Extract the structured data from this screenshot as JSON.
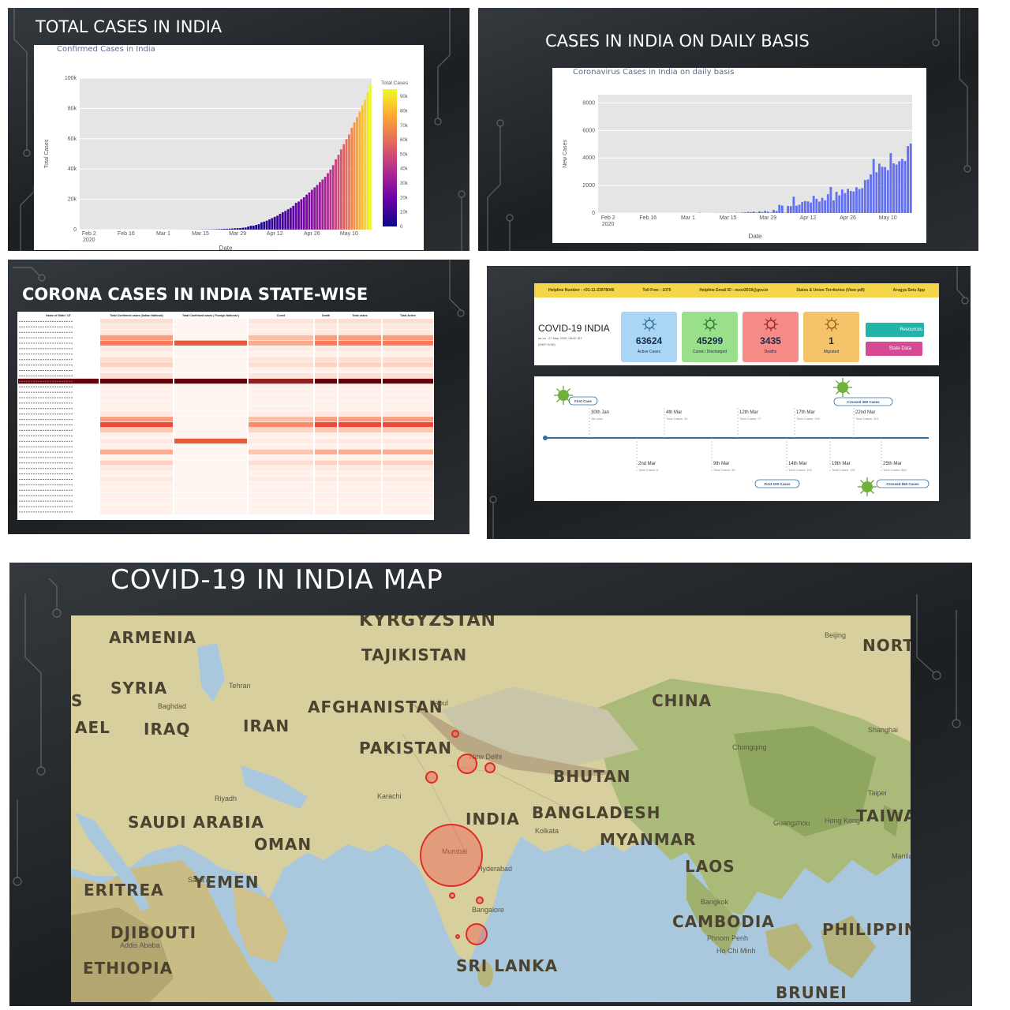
{
  "slides": {
    "total": {
      "title": "TOTAL CASES IN INDIA",
      "chart_title": "Confirmed Cases in India",
      "ylabel": "Total Cases",
      "xlabel": "Date",
      "colorbar_title": "Total Cases",
      "yticks": [
        "0",
        "20k",
        "40k",
        "60k",
        "80k",
        "100k"
      ],
      "xticks": [
        "Feb 2\n2020",
        "Feb 16",
        "Mar 1",
        "Mar 15",
        "Mar 29",
        "Apr 12",
        "Apr 26",
        "May 10"
      ],
      "cbticks": [
        "0",
        "10k",
        "20k",
        "30k",
        "40k",
        "50k",
        "60k",
        "70k",
        "80k",
        "90k"
      ]
    },
    "daily": {
      "title": "CASES IN INDIA ON DAILY BASIS",
      "chart_title": "Coronavirus Cases in India on daily basis",
      "ylabel": "New Cases",
      "xlabel": "Date",
      "yticks": [
        "0",
        "2000",
        "4000",
        "6000",
        "8000"
      ],
      "xticks": [
        "Feb 2\n2020",
        "Feb 16",
        "Mar 1",
        "Mar 15",
        "Mar 29",
        "Apr 12",
        "Apr 26",
        "May 10"
      ]
    },
    "statewise": {
      "title": "CORONA CASES IN INDIA STATE-WISE",
      "headers": [
        "Name of State / UT",
        "Total Confirmed cases (Indian National)",
        "Total Confirmed cases ( Foreign National )",
        "Cured",
        "Death",
        "Total cases",
        "Total Active"
      ]
    },
    "dashboard": {
      "topbar": [
        "Helpline Number : +91-11-23978046",
        "Toll Free : 1075",
        "Helpline Email ID : ncov2019@gov.in",
        "States & Union Territories (View pdf)",
        "Arogya Setu App"
      ],
      "title": "COVID-19 INDIA",
      "subtitle": "as on : 27 May 2020, 08:00 IST (GMT+5:30)",
      "cards": [
        {
          "value": "63624",
          "label": "Active Cases",
          "color": "#a9d6f5"
        },
        {
          "value": "45299",
          "label": "Cured / Discharged",
          "color": "#9ae08a"
        },
        {
          "value": "3435",
          "label": "Deaths",
          "color": "#f58a86"
        },
        {
          "value": "1",
          "label": "Migrated",
          "color": "#f5c46a"
        }
      ],
      "buttons": [
        "Resources",
        "State Data"
      ],
      "timeline_top": [
        {
          "date": "30th Jan",
          "note": "1st case"
        },
        {
          "date": "4th Mar",
          "note": "Total Cases: 32"
        },
        {
          "date": "12th Mar",
          "note": "Total Cases: 77"
        },
        {
          "date": "17th Mar",
          "note": "Total Cases: 130"
        },
        {
          "date": "22nd Mar",
          "note": "Total Cases: 321"
        }
      ],
      "timeline_bottom": [
        {
          "date": "2nd Mar",
          "note": "Total Cases: 6"
        },
        {
          "date": "9th Mar",
          "note": "Total Cases: 39"
        },
        {
          "date": "14th Mar",
          "note": "Total Cases: 100"
        },
        {
          "date": "19th Mar",
          "note": "Total Cases: 151"
        },
        {
          "date": "25th Mar",
          "note": "Total Cases: 562"
        }
      ],
      "tags": [
        "First Case",
        "Crossed 300 Cases",
        "First 100 Cases",
        "Crossed 550 Cases"
      ]
    },
    "map": {
      "title": "COVID-19 IN INDIA MAP",
      "countries": [
        "KYRGYZSTAN",
        "ARMENIA",
        "TAJIKISTAN",
        "NORT",
        "SYRIA",
        "S",
        "AEL",
        "IRAQ",
        "AFGHANISTAN",
        "CHINA",
        "IRAN",
        "PAKISTAN",
        "BHUTAN",
        "INDIA",
        "BANGLADESH",
        "TAIWA",
        "SAUDI ARABIA",
        "OMAN",
        "MYANMAR",
        "LAOS",
        "ERITREA",
        "YEMEN",
        "CAMBODIA",
        "PHILIPPINE",
        "DJIBOUTI",
        "ETHIOPIA",
        "SRI LANKA",
        "BRUNEI"
      ],
      "cities": [
        "Beijing",
        "Kabul",
        "Baghdad",
        "Tehran",
        "Shanghai",
        "Chongqing",
        "New Delhi",
        "Riyadh",
        "Karachi",
        "Kolkata",
        "Guangzhou",
        "Hong Kong",
        "Taipei",
        "Mumbai",
        "Hyderabad",
        "Bangalore",
        "Bangkok",
        "Manila",
        "Phnom Penh",
        "Ho Chi Minh",
        "Sana'a",
        "Addis Ababa"
      ]
    }
  },
  "chart_data": [
    {
      "type": "bar",
      "title": "Confirmed Cases in India",
      "xlabel": "Date",
      "ylabel": "Total Cases",
      "ylim": [
        0,
        100000
      ],
      "x_range": [
        "2020-01-30",
        "2020-05-18"
      ],
      "values": [
        1,
        1,
        1,
        2,
        3,
        3,
        3,
        3,
        3,
        3,
        3,
        3,
        3,
        3,
        3,
        3,
        3,
        3,
        3,
        3,
        3,
        3,
        3,
        3,
        3,
        3,
        3,
        3,
        3,
        3,
        3,
        3,
        3,
        5,
        6,
        28,
        30,
        31,
        34,
        39,
        43,
        56,
        62,
        73,
        82,
        102,
        113,
        119,
        142,
        156,
        194,
        244,
        330,
        396,
        499,
        536,
        657,
        727,
        887,
        987,
        1024,
        1251,
        1397,
        1998,
        2543,
        2567,
        3082,
        3588,
        4778,
        5311,
        5916,
        6725,
        7598,
        8446,
        9205,
        10453,
        11487,
        12322,
        13430,
        14352,
        15722,
        17615,
        18539,
        20080,
        21370,
        23077,
        24530,
        26283,
        27890,
        29451,
        31324,
        33062,
        34863,
        37257,
        39699,
        42505,
        46437,
        49400,
        52987,
        56351,
        59695,
        62808,
        67161,
        70768,
        74292,
        78055,
        81997,
        85784,
        90648,
        95698
      ],
      "colorbar": {
        "title": "Total Cases",
        "colors": [
          "#0d0887",
          "#6a00a8",
          "#b12a90",
          "#e16462",
          "#fca636",
          "#f0f921"
        ]
      }
    },
    {
      "type": "bar",
      "title": "Coronavirus Cases in India on daily basis",
      "xlabel": "Date",
      "ylabel": "New Cases",
      "ylim": [
        0,
        8600
      ],
      "x_range": [
        "2020-01-30",
        "2020-05-18"
      ],
      "color": "#6370f0",
      "values": [
        1,
        0,
        0,
        1,
        1,
        0,
        0,
        0,
        0,
        0,
        0,
        0,
        0,
        0,
        0,
        0,
        0,
        0,
        0,
        0,
        0,
        0,
        0,
        0,
        0,
        0,
        0,
        0,
        0,
        0,
        0,
        0,
        0,
        2,
        1,
        22,
        2,
        1,
        3,
        5,
        4,
        13,
        6,
        11,
        9,
        20,
        11,
        6,
        23,
        14,
        38,
        50,
        86,
        66,
        103,
        37,
        121,
        70,
        160,
        100,
        37,
        227,
        146,
        601,
        545,
        24,
        515,
        506,
        1190,
        533,
        605,
        809,
        873,
        848,
        759,
        1248,
        1034,
        835,
        1108,
        922,
        1370,
        1893,
        924,
        1541,
        1290,
        1707,
        1453,
        1753,
        1607,
        1561,
        1873,
        1738,
        1801,
        2394,
        2442,
        2806,
        3932,
        2963,
        3587,
        3364,
        3344,
        3113,
        4353,
        3607,
        3524,
        3763,
        3942,
        3787,
        4864,
        5050
      ]
    }
  ]
}
